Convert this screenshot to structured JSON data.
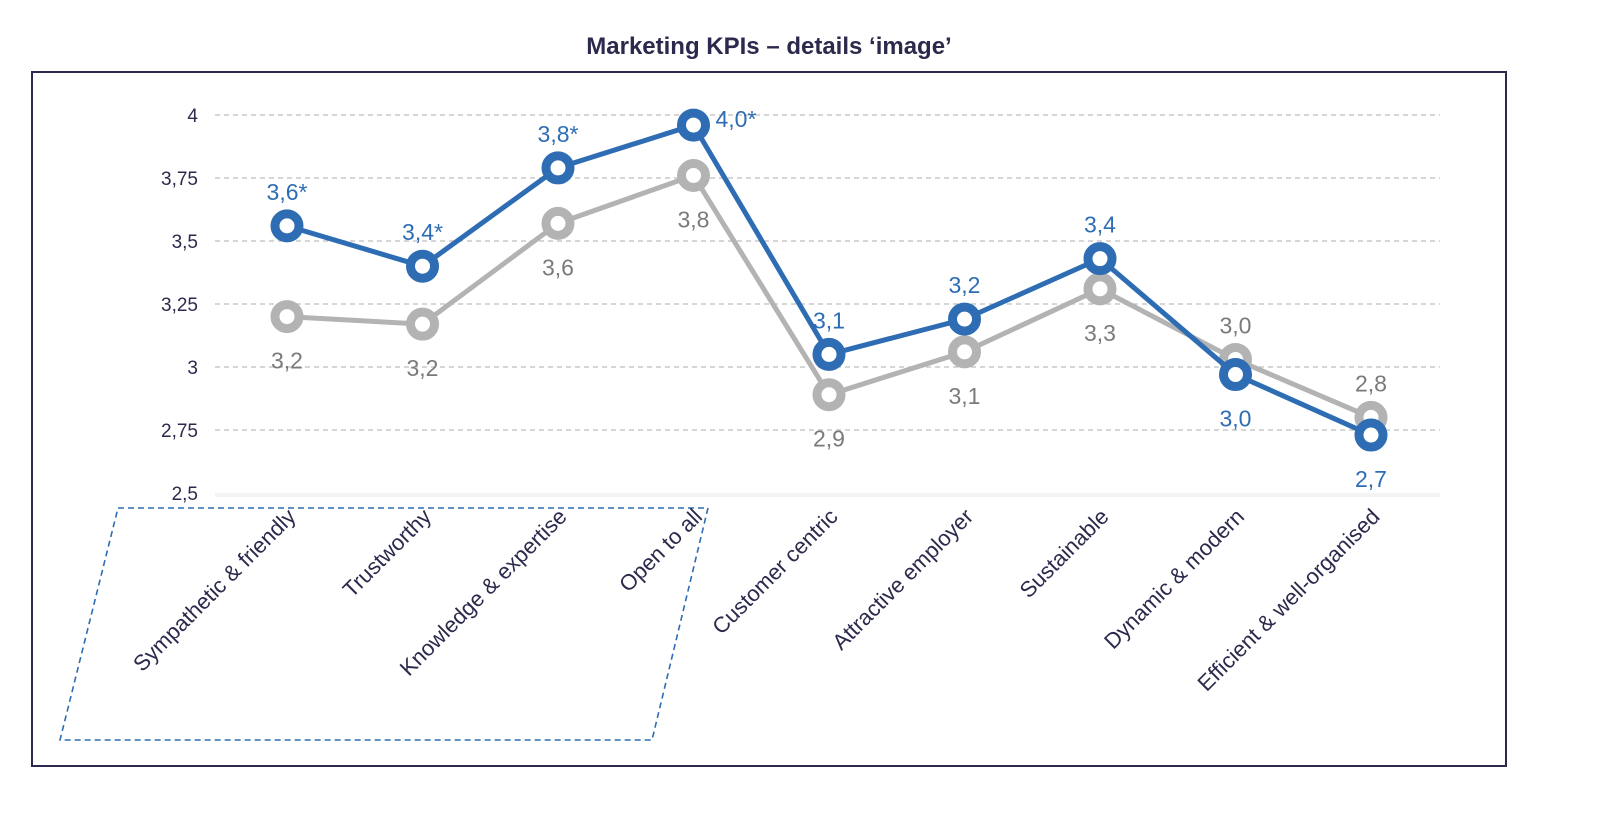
{
  "chart_data": {
    "type": "line",
    "title": "Marketing KPIs – details ‘image’",
    "ylim": [
      2.5,
      4
    ],
    "yticks": [
      4,
      3.75,
      3.5,
      3.25,
      3,
      2.75,
      2.5
    ],
    "ytick_labels": [
      "4",
      "3,75",
      "3,5",
      "3,25",
      "3",
      "2,75",
      "2,5"
    ],
    "grid": true,
    "categories": [
      "Sympathetic & friendly",
      "Trustworthy",
      "Knowledge & expertise",
      "Open to all",
      "Customer centric",
      "Attractive employer",
      "Sustainable",
      "Dynamic & modern",
      "Efficient & well-organised"
    ],
    "highlighted_categories": [
      "Sympathetic & friendly",
      "Trustworthy",
      "Knowledge & expertise",
      "Open to all"
    ],
    "series": [
      {
        "color": "#b3b3b3",
        "label_color": "#7a7a7a",
        "values": [
          3.2,
          3.17,
          3.57,
          3.76,
          2.89,
          3.06,
          3.31,
          3.03,
          2.8
        ],
        "labels": [
          "3,2",
          "3,2",
          "3,6",
          "3,8",
          "2,9",
          "3,1",
          "3,3",
          "3,0",
          "2,8"
        ],
        "label_side": [
          "below",
          "below",
          "below",
          "below",
          "below",
          "below",
          "below",
          "above",
          "above"
        ]
      },
      {
        "color": "#2e6db3",
        "label_color": "#2e6db3",
        "values": [
          3.56,
          3.4,
          3.79,
          3.96,
          3.05,
          3.19,
          3.43,
          2.97,
          2.73
        ],
        "labels": [
          "3,6*",
          "3,4*",
          "3,8*",
          "4,0*",
          "3,1",
          "3,2",
          "3,4",
          "3,0",
          "2,7"
        ],
        "label_side": [
          "above",
          "above",
          "above",
          "right",
          "above",
          "above",
          "above",
          "below",
          "below"
        ]
      }
    ],
    "colors": {
      "title": "#2b2a4c",
      "axis_text": "#2b2a4c",
      "frame": "#2b2a4c",
      "grid": "#bdbdbd",
      "highlight_box": "#2e6db3"
    }
  }
}
